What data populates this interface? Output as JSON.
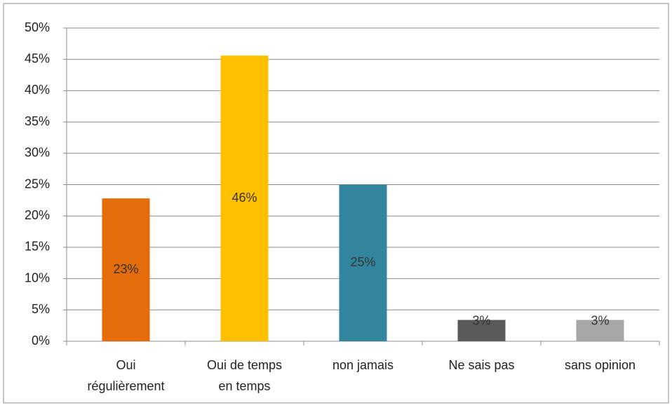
{
  "chart_data": {
    "type": "bar",
    "categories": [
      [
        "Oui",
        "régulièrement"
      ],
      [
        "Oui de temps",
        "en temps"
      ],
      [
        "non jamais"
      ],
      [
        "Ne sais pas"
      ],
      [
        "sans opinion"
      ]
    ],
    "values": [
      22.8,
      45.6,
      25,
      3.4,
      3.4
    ],
    "value_labels": [
      "23%",
      "46%",
      "25%",
      "3%",
      "3%"
    ],
    "colors": [
      "#e46c0a",
      "#ffc000",
      "#31859c",
      "#595959",
      "#a6a6a6"
    ],
    "ylim": [
      0,
      50
    ],
    "yticks": [
      {
        "value": 0,
        "label": "0%"
      },
      {
        "value": 5,
        "label": "5%"
      },
      {
        "value": 10,
        "label": "10%"
      },
      {
        "value": 15,
        "label": "15%"
      },
      {
        "value": 20,
        "label": "20%"
      },
      {
        "value": 25,
        "label": "25%"
      },
      {
        "value": 30,
        "label": "30%"
      },
      {
        "value": 35,
        "label": "35%"
      },
      {
        "value": 40,
        "label": "40%"
      },
      {
        "value": 45,
        "label": "45%"
      },
      {
        "value": 50,
        "label": "50%"
      }
    ],
    "grid": true
  }
}
